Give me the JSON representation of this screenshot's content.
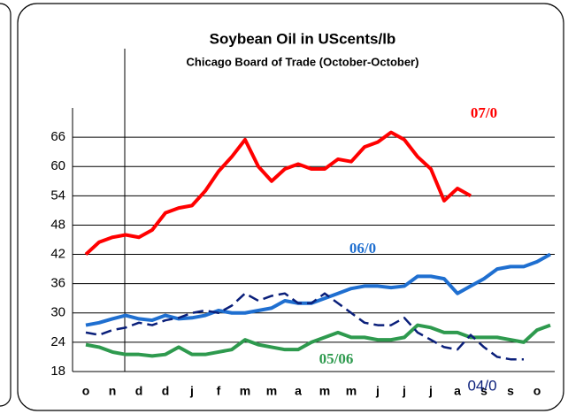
{
  "chart_data": {
    "type": "line",
    "title": "Soybean Oil in UScents/lb",
    "subtitle": "Chicago Board of Trade (October-October)",
    "categories": [
      "o",
      null,
      "n",
      null,
      "d",
      null,
      "d",
      null,
      "j",
      null,
      "f",
      null,
      "m",
      null,
      "m",
      null,
      "a",
      null,
      "m",
      null,
      "m",
      null,
      "j",
      null,
      "j",
      null,
      "j",
      null,
      "a",
      null,
      "s",
      null,
      "s",
      null,
      "o",
      null
    ],
    "ylim": [
      18,
      72
    ],
    "yticks": [
      18,
      24,
      30,
      36,
      42,
      48,
      54,
      60,
      66
    ],
    "grid": true,
    "series": [
      {
        "name": "07/0",
        "color": "#ff0000",
        "values": [
          42,
          44.5,
          45.5,
          46,
          45.5,
          47,
          50.5,
          51.5,
          52,
          55,
          59,
          62,
          65.5,
          60,
          57,
          59.5,
          60.5,
          59.5,
          59.5,
          61.5,
          61,
          64,
          65,
          67,
          65.5,
          62,
          59.5,
          53,
          55.5,
          54,
          null,
          null,
          null,
          null,
          null,
          null
        ]
      },
      {
        "name": "06/0",
        "color": "#1f6fd0",
        "values": [
          27.5,
          28,
          28.8,
          29.5,
          28.8,
          28.5,
          29.5,
          28.8,
          29,
          29.5,
          30.5,
          30,
          30,
          30.5,
          31,
          32.5,
          32,
          32,
          33,
          34,
          35,
          35.5,
          35.5,
          35.2,
          35.5,
          37.5,
          37.5,
          37,
          34,
          35.5,
          37,
          39,
          39.5,
          39.5,
          40.5,
          42
        ]
      },
      {
        "name": "05/06",
        "color": "#2e9a4e",
        "values": [
          23.5,
          23,
          22,
          21.5,
          21.5,
          21.2,
          21.5,
          23,
          21.5,
          21.5,
          22,
          22.5,
          24.5,
          23.5,
          23,
          22.5,
          22.5,
          24,
          25,
          26,
          25,
          25,
          24.5,
          24.5,
          25,
          27.5,
          27,
          26,
          26,
          25,
          25,
          25,
          24.5,
          24,
          26.5,
          27.5
        ]
      },
      {
        "name": "04/0",
        "color": "#0a1f7a",
        "values": [
          26,
          25.5,
          26.5,
          27,
          28,
          27.5,
          28.5,
          29,
          30,
          30.5,
          30,
          31.5,
          34,
          32.5,
          33.5,
          34,
          32,
          32,
          34,
          32,
          30,
          28,
          27.5,
          27.5,
          29,
          26,
          24.5,
          23,
          22.5,
          25.5,
          23,
          21,
          20.5,
          20.5,
          null,
          null
        ]
      }
    ]
  }
}
